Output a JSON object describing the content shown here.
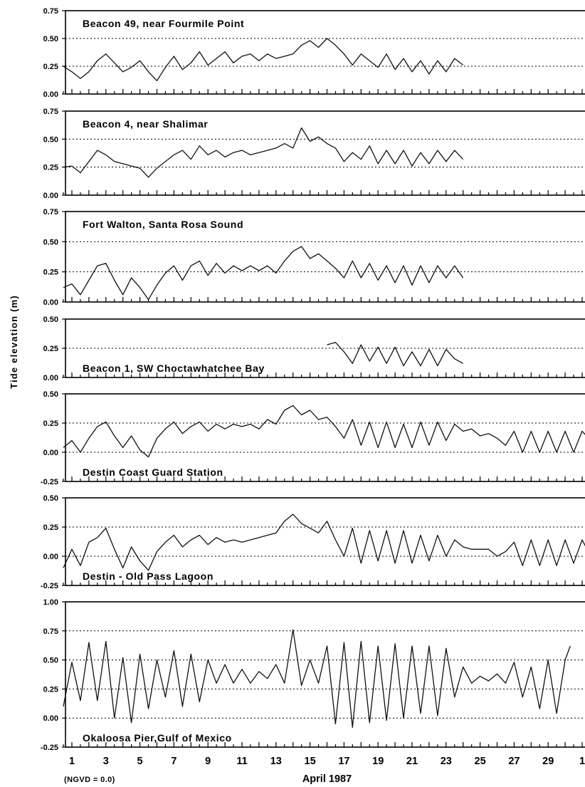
{
  "chart_data": {
    "type": "line",
    "ylabel": "Tide elevation (m)",
    "xlabel": "April 1987",
    "datum_note": "(NGVD = 0.0)",
    "x_tick_labels": [
      "1",
      "3",
      "5",
      "7",
      "9",
      "11",
      "13",
      "15",
      "17",
      "19",
      "21",
      "23",
      "25",
      "27",
      "29",
      "1"
    ],
    "x_tick_days": [
      1,
      3,
      5,
      7,
      9,
      11,
      13,
      15,
      17,
      19,
      21,
      23,
      25,
      27,
      29,
      31
    ],
    "xlim": [
      0.5,
      31.5
    ],
    "grid": "horizontal dotted",
    "panels": [
      {
        "title": "Beacon 49, near Fourmile Point",
        "title_position": "top",
        "ylim": [
          0,
          0.75
        ],
        "yticks": [
          "0.00",
          "0.25",
          "0.50",
          "0.75"
        ],
        "grid_y": [
          0.25,
          0.5
        ],
        "series": [
          {
            "x": [
              0.5,
              1.0,
              1.5,
              2.0,
              2.5,
              3.0,
              3.5,
              4.0,
              4.5,
              5.0,
              5.5,
              6.0,
              6.5,
              7.0,
              7.5,
              8.0,
              8.5,
              9.0,
              9.5,
              10.0,
              10.5,
              11.0,
              11.5,
              12.0,
              12.5,
              13.0,
              13.5,
              14.0,
              14.5,
              15.0,
              15.5,
              16.0,
              16.5,
              17.0,
              17.5,
              18.0,
              18.5,
              19.0,
              19.5,
              20.0,
              20.5,
              21.0,
              21.5,
              22.0,
              22.5,
              23.0,
              23.5,
              24.0
            ],
            "values": [
              0.25,
              0.2,
              0.14,
              0.2,
              0.3,
              0.36,
              0.28,
              0.2,
              0.24,
              0.3,
              0.2,
              0.12,
              0.24,
              0.34,
              0.22,
              0.28,
              0.38,
              0.26,
              0.32,
              0.38,
              0.28,
              0.34,
              0.36,
              0.3,
              0.36,
              0.32,
              0.34,
              0.36,
              0.44,
              0.48,
              0.42,
              0.5,
              0.44,
              0.36,
              0.26,
              0.36,
              0.3,
              0.24,
              0.36,
              0.22,
              0.32,
              0.2,
              0.3,
              0.18,
              0.3,
              0.2,
              0.32,
              0.26
            ]
          }
        ]
      },
      {
        "title": "Beacon 4, near Shalimar",
        "title_position": "top",
        "ylim": [
          0,
          0.75
        ],
        "yticks": [
          "0.00",
          "0.25",
          "0.50",
          "0.75"
        ],
        "grid_y": [
          0.25,
          0.5
        ],
        "series": [
          {
            "x": [
              0.5,
              1.0,
              1.5,
              2.0,
              2.5,
              3.0,
              3.5,
              4.0,
              4.5,
              5.0,
              5.5,
              6.0,
              6.5,
              7.0,
              7.5,
              8.0,
              8.5,
              9.0,
              9.5,
              10.0,
              10.5,
              11.0,
              11.5,
              12.0,
              12.5,
              13.0,
              13.5,
              14.0,
              14.5,
              15.0,
              15.5,
              16.0,
              16.5,
              17.0,
              17.5,
              18.0,
              18.5,
              19.0,
              19.5,
              20.0,
              20.5,
              21.0,
              21.5,
              22.0,
              22.5,
              23.0,
              23.5,
              24.0
            ],
            "values": [
              0.25,
              0.26,
              0.2,
              0.3,
              0.4,
              0.36,
              0.3,
              0.28,
              0.26,
              0.24,
              0.16,
              0.24,
              0.3,
              0.36,
              0.4,
              0.32,
              0.44,
              0.36,
              0.4,
              0.34,
              0.38,
              0.4,
              0.36,
              0.38,
              0.4,
              0.42,
              0.46,
              0.42,
              0.6,
              0.48,
              0.52,
              0.46,
              0.42,
              0.3,
              0.38,
              0.32,
              0.44,
              0.28,
              0.4,
              0.28,
              0.4,
              0.26,
              0.38,
              0.28,
              0.4,
              0.3,
              0.4,
              0.32
            ]
          }
        ]
      },
      {
        "title": "Fort Walton, Santa Rosa Sound",
        "title_position": "top",
        "ylim": [
          0,
          0.75
        ],
        "yticks": [
          "0.00",
          "0.25",
          "0.50",
          "0.75"
        ],
        "grid_y": [
          0.25,
          0.5
        ],
        "series": [
          {
            "x": [
              0.5,
              1.0,
              1.5,
              2.0,
              2.5,
              3.0,
              3.5,
              4.0,
              4.5,
              5.0,
              5.5,
              6.0,
              6.5,
              7.0,
              7.5,
              8.0,
              8.5,
              9.0,
              9.5,
              10.0,
              10.5,
              11.0,
              11.5,
              12.0,
              12.5,
              13.0,
              13.5,
              14.0,
              14.5,
              15.0,
              15.5,
              16.0,
              16.5,
              17.0,
              17.5,
              18.0,
              18.5,
              19.0,
              19.5,
              20.0,
              20.5,
              21.0,
              21.5,
              22.0,
              22.5,
              23.0,
              23.5,
              24.0
            ],
            "values": [
              0.12,
              0.15,
              0.06,
              0.18,
              0.3,
              0.32,
              0.18,
              0.06,
              0.2,
              0.12,
              0.02,
              0.14,
              0.24,
              0.3,
              0.18,
              0.3,
              0.34,
              0.22,
              0.32,
              0.24,
              0.3,
              0.26,
              0.3,
              0.26,
              0.3,
              0.24,
              0.34,
              0.42,
              0.46,
              0.36,
              0.4,
              0.34,
              0.28,
              0.2,
              0.34,
              0.2,
              0.32,
              0.18,
              0.3,
              0.16,
              0.3,
              0.14,
              0.3,
              0.16,
              0.3,
              0.2,
              0.3,
              0.2
            ]
          }
        ]
      },
      {
        "title": "Beacon 1, SW Choctawhatchee Bay",
        "title_position": "bottom",
        "ylim": [
          0,
          0.5
        ],
        "yticks": [
          "0.00",
          "0.25",
          "0.50"
        ],
        "grid_y": [
          0.25
        ],
        "series": [
          {
            "x": [
              16.0,
              16.5,
              17.0,
              17.5,
              18.0,
              18.5,
              19.0,
              19.5,
              20.0,
              20.5,
              21.0,
              21.5,
              22.0,
              22.5,
              23.0,
              23.5,
              24.0
            ],
            "values": [
              0.28,
              0.3,
              0.22,
              0.12,
              0.28,
              0.14,
              0.26,
              0.12,
              0.26,
              0.1,
              0.22,
              0.1,
              0.24,
              0.1,
              0.24,
              0.16,
              0.12
            ]
          }
        ]
      },
      {
        "title": "Destin Coast Guard Station",
        "title_position": "bottom",
        "ylim": [
          -0.25,
          0.5
        ],
        "yticks": [
          "-0.25",
          "0.00",
          "0.25",
          "0.50"
        ],
        "grid_y": [
          0.0,
          0.25
        ],
        "series": [
          {
            "x": [
              0.5,
              1.0,
              1.5,
              2.0,
              2.5,
              3.0,
              3.5,
              4.0,
              4.5,
              5.0,
              5.5,
              6.0,
              6.5,
              7.0,
              7.5,
              8.0,
              8.5,
              9.0,
              9.5,
              10.0,
              10.5,
              11.0,
              11.5,
              12.0,
              12.5,
              13.0,
              13.5,
              14.0,
              14.5,
              15.0,
              15.5,
              16.0,
              16.5,
              17.0,
              17.5,
              18.0,
              18.5,
              19.0,
              19.5,
              20.0,
              20.5,
              21.0,
              21.5,
              22.0,
              22.5,
              23.0,
              23.5,
              24.0,
              24.5,
              25.0,
              25.5,
              26.0,
              26.5,
              27.0,
              27.5,
              28.0,
              28.5,
              29.0,
              29.5,
              30.0,
              30.5,
              31.0,
              31.5
            ],
            "values": [
              0.04,
              0.1,
              0.0,
              0.12,
              0.22,
              0.26,
              0.14,
              0.04,
              0.14,
              0.02,
              -0.04,
              0.12,
              0.2,
              0.26,
              0.16,
              0.22,
              0.26,
              0.18,
              0.24,
              0.2,
              0.24,
              0.22,
              0.24,
              0.2,
              0.28,
              0.24,
              0.36,
              0.4,
              0.32,
              0.36,
              0.28,
              0.3,
              0.22,
              0.12,
              0.28,
              0.06,
              0.26,
              0.04,
              0.26,
              0.04,
              0.24,
              0.04,
              0.26,
              0.06,
              0.26,
              0.1,
              0.24,
              0.18,
              0.2,
              0.14,
              0.16,
              0.12,
              0.06,
              0.18,
              0.0,
              0.18,
              0.0,
              0.18,
              0.0,
              0.18,
              0.0,
              0.18,
              0.1
            ]
          }
        ]
      },
      {
        "title": "Destin - Old Pass Lagoon",
        "title_position": "bottom",
        "ylim": [
          -0.25,
          0.5
        ],
        "yticks": [
          "-0.25",
          "0.00",
          "0.25",
          "0.50"
        ],
        "grid_y": [
          0.0,
          0.25
        ],
        "series": [
          {
            "x": [
              0.5,
              1.0,
              1.5,
              2.0,
              2.5,
              3.0,
              3.5,
              4.0,
              4.5,
              5.0,
              5.5,
              6.0,
              6.5,
              7.0,
              7.5,
              8.0,
              8.5,
              9.0,
              9.5,
              10.0,
              10.5,
              11.0,
              11.5,
              12.0,
              12.5,
              13.0,
              13.5,
              14.0,
              14.5,
              15.0,
              15.5,
              16.0,
              16.5,
              17.0,
              17.5,
              18.0,
              18.5,
              19.0,
              19.5,
              20.0,
              20.5,
              21.0,
              21.5,
              22.0,
              22.5,
              23.0,
              23.5,
              24.0,
              24.5,
              25.0,
              25.5,
              26.0,
              26.5,
              27.0,
              27.5,
              28.0,
              28.5,
              29.0,
              29.5,
              30.0,
              30.5,
              31.0,
              31.5
            ],
            "values": [
              -0.1,
              0.06,
              -0.08,
              0.12,
              0.16,
              0.24,
              0.06,
              -0.1,
              0.08,
              -0.04,
              -0.12,
              0.04,
              0.12,
              0.18,
              0.08,
              0.14,
              0.18,
              0.1,
              0.16,
              0.12,
              0.14,
              0.12,
              0.14,
              0.16,
              0.18,
              0.2,
              0.3,
              0.36,
              0.28,
              0.24,
              0.2,
              0.3,
              0.14,
              0.0,
              0.24,
              -0.06,
              0.22,
              -0.04,
              0.22,
              -0.06,
              0.22,
              -0.06,
              0.18,
              -0.04,
              0.18,
              0.0,
              0.14,
              0.08,
              0.06,
              0.06,
              0.06,
              0.0,
              0.04,
              0.12,
              -0.08,
              0.14,
              -0.08,
              0.14,
              -0.08,
              0.14,
              -0.06,
              0.14,
              0.0
            ]
          }
        ]
      },
      {
        "title": "Okaloosa Pier,Gulf of Mexico",
        "title_position": "bottom",
        "ylim": [
          -0.25,
          1.0
        ],
        "yticks": [
          "-0.25",
          "0.00",
          "0.25",
          "0.50",
          "0.75",
          "1.00"
        ],
        "grid_y": [
          0.0,
          0.25,
          0.5,
          0.75
        ],
        "series": [
          {
            "x": [
              0.5,
              1.0,
              1.5,
              2.0,
              2.5,
              3.0,
              3.5,
              4.0,
              4.5,
              5.0,
              5.5,
              6.0,
              6.5,
              7.0,
              7.5,
              8.0,
              8.5,
              9.0,
              9.5,
              10.0,
              10.5,
              11.0,
              11.5,
              12.0,
              12.5,
              13.0,
              13.5,
              14.0,
              14.5,
              15.0,
              15.5,
              16.0,
              16.5,
              17.0,
              17.5,
              18.0,
              18.5,
              19.0,
              19.5,
              20.0,
              20.5,
              21.0,
              21.5,
              22.0,
              22.5,
              23.0,
              23.5,
              24.0,
              24.5,
              25.0,
              25.5,
              26.0,
              26.5,
              27.0,
              27.5,
              28.0,
              28.5,
              29.0,
              29.5,
              30.0,
              30.3
            ],
            "values": [
              0.1,
              0.48,
              0.15,
              0.65,
              0.15,
              0.66,
              0.0,
              0.52,
              -0.04,
              0.55,
              0.08,
              0.5,
              0.18,
              0.58,
              0.1,
              0.55,
              0.14,
              0.5,
              0.3,
              0.46,
              0.3,
              0.42,
              0.3,
              0.4,
              0.34,
              0.46,
              0.3,
              0.76,
              0.28,
              0.5,
              0.3,
              0.62,
              -0.05,
              0.65,
              -0.08,
              0.66,
              -0.04,
              0.62,
              -0.02,
              0.64,
              0.0,
              0.62,
              0.04,
              0.62,
              0.02,
              0.6,
              0.18,
              0.44,
              0.3,
              0.36,
              0.32,
              0.38,
              0.3,
              0.48,
              0.18,
              0.44,
              0.08,
              0.5,
              0.04,
              0.5,
              0.62
            ]
          }
        ]
      }
    ]
  }
}
